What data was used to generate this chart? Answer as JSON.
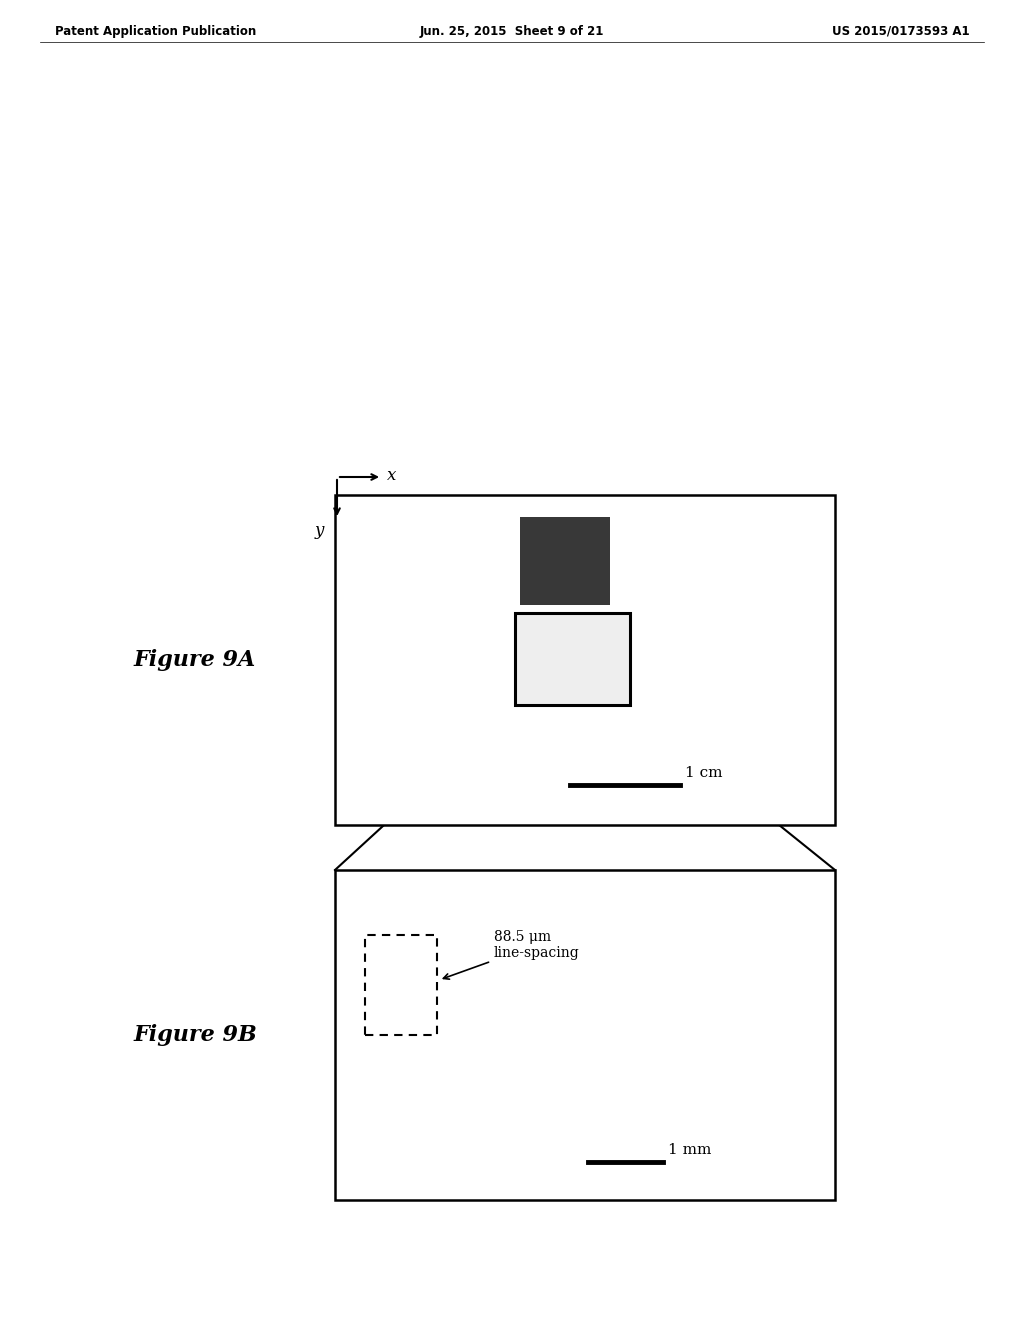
{
  "bg_color": "#ffffff",
  "header_left": "Patent Application Publication",
  "header_center": "Jun. 25, 2015  Sheet 9 of 21",
  "header_right": "US 2015/0173593 A1",
  "fig9a_label": "Figure 9A",
  "fig9b_label": "Figure 9B",
  "annotation_text": "88.5 μm\nline-spacing",
  "scale_bar_9a": "1 cm",
  "scale_bar_9b": "1 mm"
}
